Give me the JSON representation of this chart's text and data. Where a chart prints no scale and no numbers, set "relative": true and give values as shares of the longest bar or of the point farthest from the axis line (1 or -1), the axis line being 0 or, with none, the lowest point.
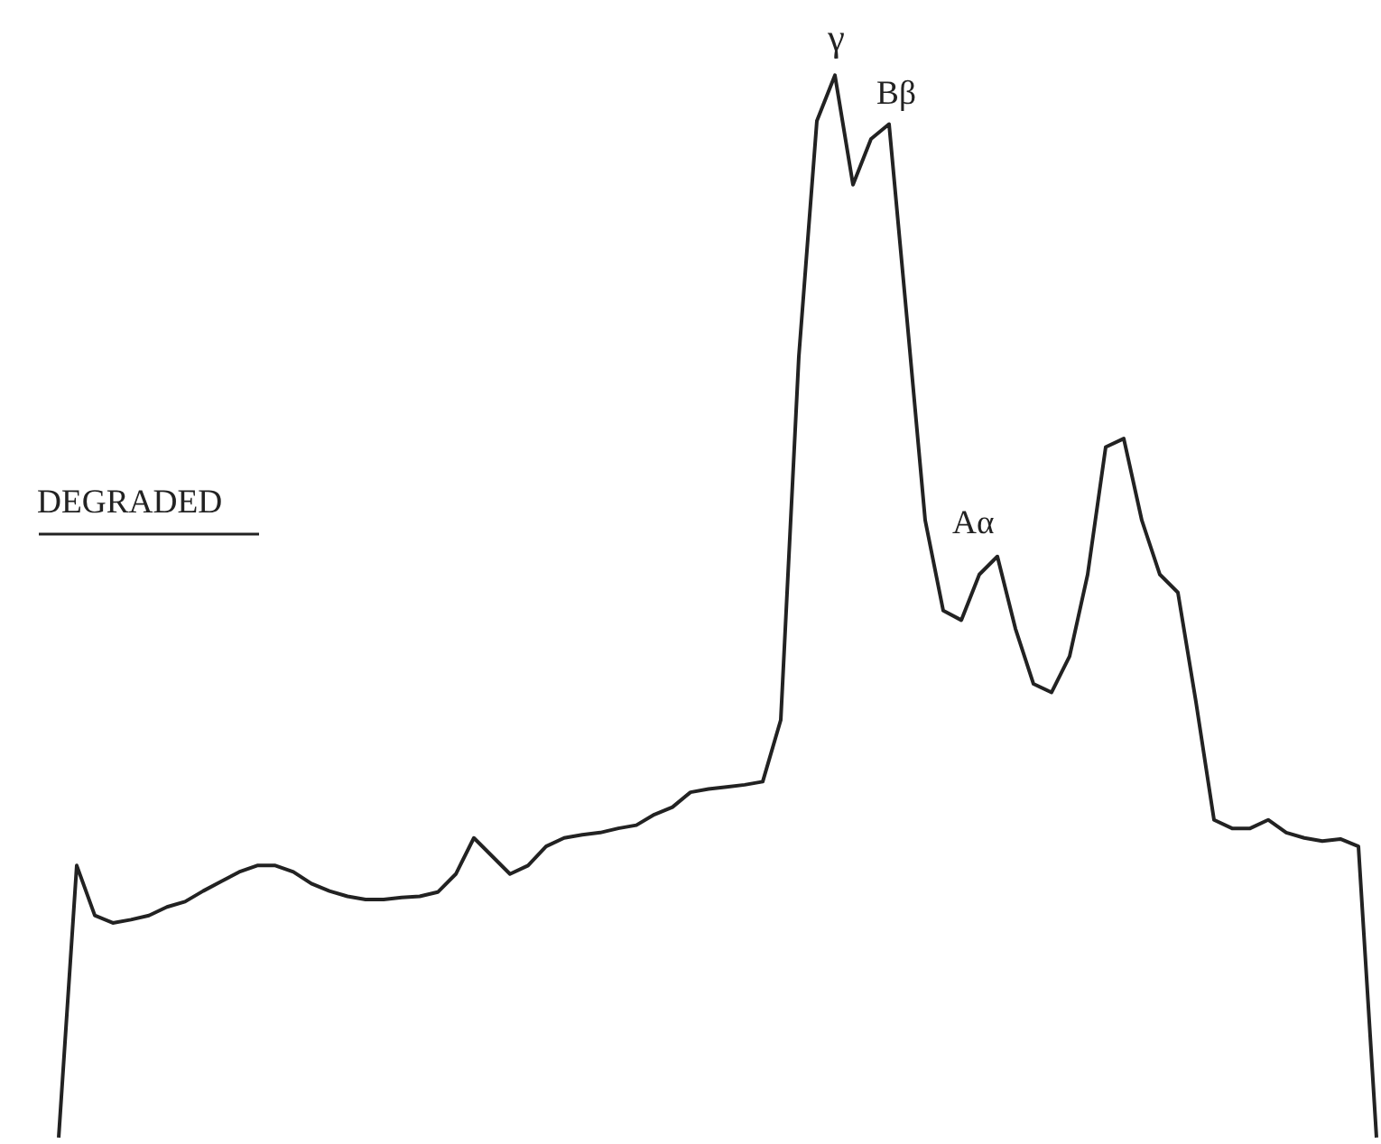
{
  "chart_data": {
    "type": "line",
    "relative": true,
    "color": "#222222",
    "line_style": "solid",
    "marker": "none",
    "grid": false,
    "categories": [
      null,
      null,
      null,
      null,
      null,
      null,
      null,
      null,
      null,
      null,
      null,
      null,
      null,
      null,
      null,
      null,
      null,
      null,
      null,
      null,
      null,
      null,
      null,
      null,
      null,
      null,
      null,
      null,
      null,
      null,
      null,
      null,
      null,
      null,
      null,
      null,
      null,
      null,
      null,
      null,
      null,
      null,
      null,
      null,
      null,
      null,
      null,
      null,
      null,
      null,
      null,
      null,
      null,
      null,
      null,
      null,
      null,
      null,
      null,
      null,
      null,
      null,
      null,
      null,
      null,
      null,
      null,
      null,
      null,
      null,
      null,
      null,
      null,
      null
    ],
    "values": [
      0,
      0.256,
      0.209,
      0.202,
      0.205,
      0.209,
      0.217,
      0.222,
      0.232,
      0.241,
      0.25,
      0.256,
      0.256,
      0.25,
      0.239,
      0.232,
      0.227,
      0.224,
      0.224,
      0.226,
      0.227,
      0.231,
      0.248,
      0.282,
      0.265,
      0.248,
      0.256,
      0.274,
      0.282,
      0.285,
      0.287,
      0.291,
      0.294,
      0.304,
      0.311,
      0.325,
      0.328,
      0.33,
      0.332,
      0.335,
      0.393,
      0.735,
      0.957,
      1,
      0.897,
      0.94,
      0.954,
      0.769,
      0.581,
      0.496,
      0.487,
      0.53,
      0.547,
      0.479,
      0.427,
      0.419,
      0.453,
      0.53,
      0.65,
      0.658,
      0.581,
      0.53,
      0.513,
      0.41,
      0.299,
      0.291,
      0.291,
      0.299,
      0.287,
      0.282,
      0.279,
      0.281,
      0.274,
      0
    ],
    "annotations": [
      "γ",
      "Bβ",
      "Aα",
      "DEGRADED"
    ]
  }
}
